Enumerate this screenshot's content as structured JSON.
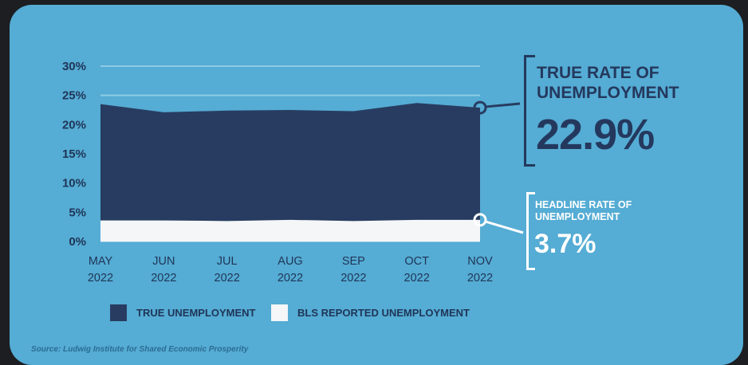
{
  "colors": {
    "background": "#55acd4",
    "true_unemployment": "#283c61",
    "bls_reported": "#f4f6f7",
    "text_dark": "#1f3557",
    "source_text": "#2b6d95"
  },
  "chart_data": {
    "type": "area",
    "categories": [
      [
        "MAY",
        "2022"
      ],
      [
        "JUN",
        "2022"
      ],
      [
        "JUL",
        "2022"
      ],
      [
        "AUG",
        "2022"
      ],
      [
        "SEP",
        "2022"
      ],
      [
        "OCT",
        "2022"
      ],
      [
        "NOV",
        "2022"
      ]
    ],
    "series": [
      {
        "name": "TRUE UNEMPLOYMENT",
        "values": [
          23.5,
          22.1,
          22.4,
          22.5,
          22.3,
          23.7,
          22.9
        ]
      },
      {
        "name": "BLS REPORTED UNEMPLOYMENT",
        "values": [
          3.6,
          3.6,
          3.5,
          3.7,
          3.5,
          3.7,
          3.7
        ]
      }
    ],
    "ylim": [
      0,
      30
    ],
    "yticks": [
      "0%",
      "5%",
      "10%",
      "15%",
      "20%",
      "25%",
      "30%"
    ],
    "grid": true,
    "legend_position": "bottom"
  },
  "callouts": {
    "true_rate": {
      "title_line1": "TRUE RATE OF",
      "title_line2": "UNEMPLOYMENT",
      "value": "22.9%"
    },
    "headline_rate": {
      "title_line1": "HEADLINE RATE OF",
      "title_line2": "UNEMPLOYMENT",
      "value": "3.7%"
    }
  },
  "legend": {
    "true_label": "TRUE UNEMPLOYMENT",
    "bls_label": "BLS REPORTED UNEMPLOYMENT"
  },
  "source": "Source: Ludwig Institute for Shared Economic Prosperity"
}
